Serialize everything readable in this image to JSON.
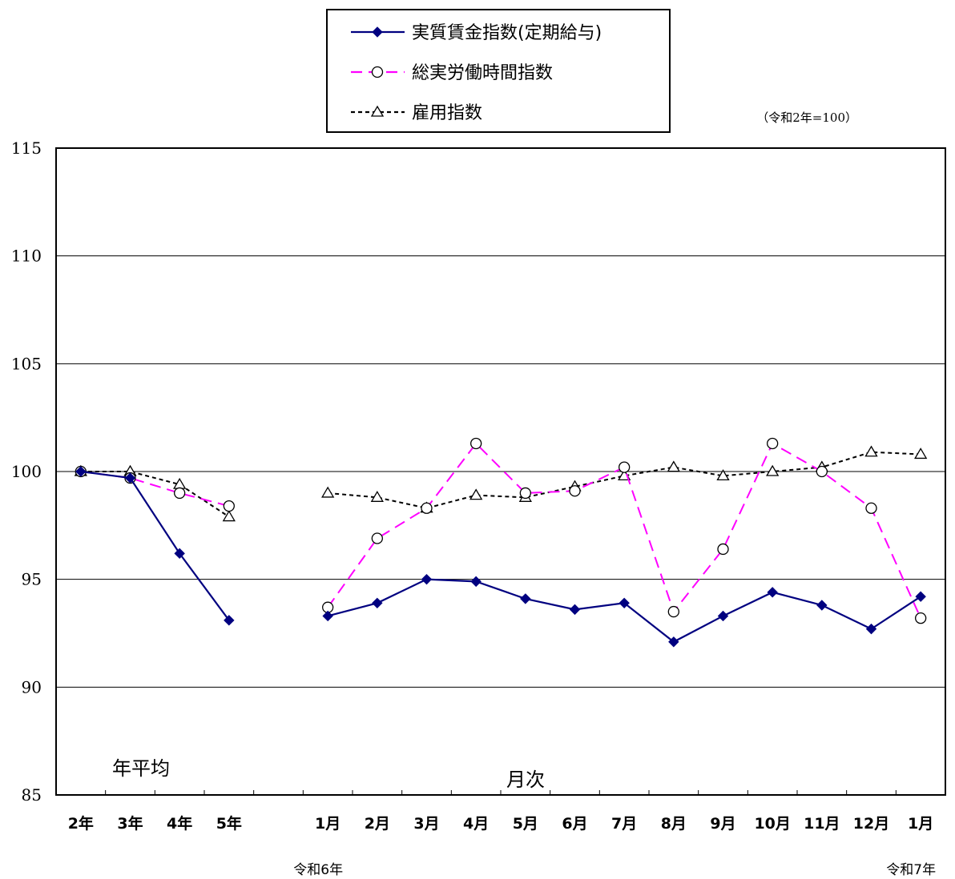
{
  "chart_data": {
    "type": "line",
    "base_note": "（令和2年=100）",
    "ylim": [
      85,
      115
    ],
    "yticks": [
      85,
      90,
      95,
      100,
      105,
      110,
      115
    ],
    "grid": true,
    "legend_position": "top-center",
    "annotations": {
      "annual": "年平均",
      "monthly": "月次"
    },
    "categories": [
      "2年",
      "3年",
      "4年",
      "5年",
      "",
      "1月",
      "2月",
      "3月",
      "4月",
      "5月",
      "6月",
      "7月",
      "8月",
      "9月",
      "10月",
      "11月",
      "12月",
      "1月"
    ],
    "era_labels": [
      {
        "text": "令和6年",
        "under_category_index": 5
      },
      {
        "text": "令和7年",
        "under_category_index": 17
      }
    ],
    "series": [
      {
        "name": "実質賃金指数(定期給与)",
        "color": "#000080",
        "line_style": "solid",
        "marker": "diamond-filled",
        "values": [
          100.0,
          99.7,
          96.2,
          93.1,
          null,
          93.3,
          93.9,
          95.0,
          94.9,
          94.1,
          93.6,
          93.9,
          92.1,
          93.3,
          94.4,
          93.8,
          92.7,
          94.2
        ]
      },
      {
        "name": "総実労働時間指数",
        "color": "#ff00ff",
        "line_style": "dashed",
        "marker": "circle-open",
        "values": [
          100.0,
          99.7,
          99.0,
          98.4,
          null,
          93.7,
          96.9,
          98.3,
          101.3,
          99.0,
          99.1,
          100.2,
          93.5,
          96.4,
          101.3,
          100.0,
          98.3,
          93.2
        ]
      },
      {
        "name": "雇用指数",
        "color": "#000000",
        "line_style": "dotted",
        "marker": "triangle-open",
        "values": [
          100.0,
          100.0,
          99.4,
          97.9,
          null,
          99.0,
          98.8,
          98.3,
          98.9,
          98.8,
          99.3,
          99.8,
          100.2,
          99.8,
          100.0,
          100.2,
          100.9,
          100.8
        ]
      }
    ]
  }
}
